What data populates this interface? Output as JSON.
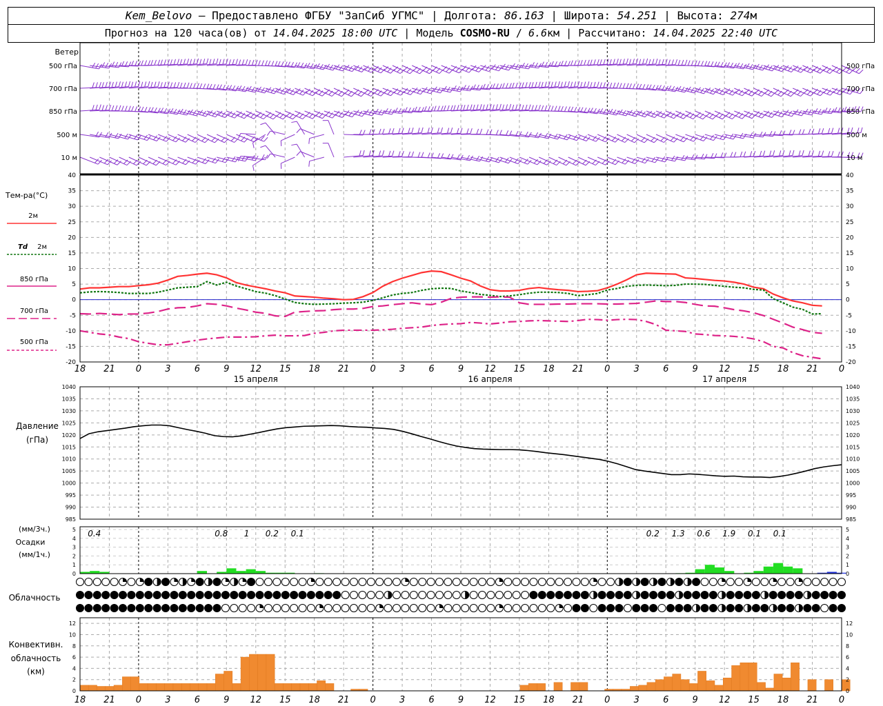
{
  "header": {
    "station": "Kem_Belovo",
    "dash": " – ",
    "provider": "Предоставлено ФГБУ \"ЗапСиб УГМС\"",
    "sep": " | ",
    "lon_label": "Долгота: ",
    "lon": "86.163",
    "lat_label": "Широта: ",
    "lat": "54.251",
    "alt_label": "Высота: ",
    "alt": "274",
    "alt_unit": "м",
    "forecast_label": "Прогноз на 120 часа(ов) от ",
    "start": "14.04.2025 18:00 UTC",
    "model_label": "Модель ",
    "model": "COSMO-RU",
    "model_sep": " / ",
    "res": "6.6",
    "res_unit": "км",
    "calc_label": "Рассчитано: ",
    "calc": "14.04.2025 22:40 UTC"
  },
  "labels": {
    "wind": "Ветер",
    "wind_levels": [
      "500 гПа",
      "700 гПа",
      "850 гПа",
      "500 м",
      "10  м"
    ],
    "temp": "Тем-ра(°C)",
    "t2m": "2м",
    "td": "Td",
    "td2m": "2м",
    "l850": "850 гПа",
    "l700": "700 гПа",
    "l500": "500 гПа",
    "pressure": "Давление",
    "pressure_unit": "(гПа)",
    "precip_unit3": "(мм/3ч.)",
    "precip": "Осадки",
    "precip_unit1": "(мм/1ч.)",
    "cloud": "Облачность",
    "conv1": "Конвективн.",
    "conv2": "облачность",
    "conv3": "(км)"
  },
  "colors": {
    "t2m": "#ff3333",
    "td2m": "#117711",
    "levels": "#dd2288",
    "wind": "#8833cc",
    "pressure": "#000000",
    "precip_green": "#22dd22",
    "precip_blue": "#2233dd",
    "conv": "#f08a30",
    "zero_line": "#2222cc"
  },
  "chart_data": [
    {
      "type": "line",
      "panel": "temperature",
      "x_hours": [
        0,
        1,
        2,
        3,
        4,
        5,
        6,
        7,
        8,
        9,
        10,
        11,
        12,
        13,
        14,
        15,
        16,
        17,
        18,
        19,
        20,
        21,
        22,
        23,
        24,
        25,
        26,
        27,
        28,
        29,
        30,
        31,
        32,
        33,
        34,
        35,
        36,
        37,
        38,
        39,
        40,
        41,
        42,
        43,
        44,
        45,
        46,
        47,
        48,
        49,
        50,
        51,
        52,
        53,
        54,
        55,
        56,
        57,
        58,
        59,
        60,
        61,
        62,
        63,
        64,
        65,
        66,
        67,
        68,
        69,
        70,
        71,
        72,
        73,
        74,
        75,
        76,
        77,
        78
      ],
      "x_tick_labels": [
        "18",
        "21",
        "0",
        "3",
        "6",
        "9",
        "12",
        "15",
        "18",
        "21",
        "0",
        "3",
        "6",
        "9",
        "12",
        "15",
        "18",
        "21",
        "0",
        "3",
        "6",
        "9",
        "12",
        "15",
        "18",
        "21",
        "0"
      ],
      "day_labels": [
        "15 апреля",
        "16 апреля",
        "17 апреля"
      ],
      "ylim": [
        -20,
        40
      ],
      "y_ticks": [
        -20,
        -15,
        -10,
        -5,
        0,
        5,
        10,
        15,
        20,
        25,
        30,
        35,
        40
      ],
      "series": [
        {
          "key": "t2m",
          "values": [
            3.4,
            3.8,
            3.8,
            4.0,
            4.2,
            4.2,
            4.5,
            4.8,
            5.3,
            6.3,
            7.5,
            7.8,
            8.2,
            8.5,
            8.0,
            7.0,
            5.5,
            4.7,
            4.1,
            3.5,
            2.8,
            2.2,
            1.2,
            1.0,
            0.8,
            0.5,
            0.3,
            0.0,
            0.1,
            1.0,
            2.3,
            4.3,
            5.8,
            6.9,
            7.8,
            8.7,
            9.2,
            9.0,
            8.0,
            6.9,
            6.0,
            4.4,
            3.2,
            2.8,
            2.8,
            3.0,
            3.6,
            3.9,
            3.5,
            3.2,
            3.0,
            2.6,
            2.7,
            2.9,
            3.8,
            5.0,
            6.4,
            8.0,
            8.5,
            8.4,
            8.3,
            8.2,
            7.0,
            6.8,
            6.5,
            6.2,
            6.0,
            5.6,
            5.0,
            4.0,
            3.5,
            1.8,
            0.6,
            -0.4,
            -1.0,
            -1.8,
            -2.0
          ]
        },
        {
          "key": "td2m",
          "values": [
            2.2,
            2.5,
            2.6,
            2.5,
            2.3,
            2.0,
            2.0,
            2.0,
            2.4,
            3.1,
            3.8,
            4.0,
            4.2,
            5.8,
            4.7,
            5.6,
            4.4,
            3.5,
            2.6,
            2.1,
            1.3,
            0.2,
            -0.9,
            -1.3,
            -1.5,
            -1.4,
            -1.3,
            -1.1,
            -1.0,
            -0.8,
            -0.2,
            0.6,
            1.5,
            2.0,
            2.3,
            3.0,
            3.5,
            3.7,
            3.6,
            2.8,
            2.3,
            1.7,
            1.4,
            1.0,
            1.2,
            1.6,
            2.1,
            2.4,
            2.4,
            2.3,
            2.0,
            1.3,
            1.6,
            2.0,
            3.1,
            3.6,
            4.3,
            4.6,
            4.7,
            4.6,
            4.5,
            4.6,
            5.0,
            5.0,
            4.9,
            4.6,
            4.3,
            4.0,
            3.8,
            3.3,
            3.1,
            0.3,
            -1.0,
            -2.4,
            -3.1,
            -4.6,
            -4.5
          ]
        },
        {
          "key": "l850",
          "values": [
            -4.5,
            -4.6,
            -4.4,
            -4.6,
            -4.8,
            -4.6,
            -4.6,
            -4.3,
            -3.8,
            -3.0,
            -2.6,
            -2.5,
            -2.0,
            -1.3,
            -1.5,
            -2.0,
            -2.7,
            -3.3,
            -4.0,
            -4.4,
            -5.2,
            -5.4,
            -4.0,
            -3.8,
            -3.6,
            -3.5,
            -3.2,
            -3.0,
            -3.0,
            -2.8,
            -2.2,
            -2.0,
            -1.6,
            -1.3,
            -1.0,
            -1.4,
            -1.6,
            -0.8,
            0.4,
            0.8,
            0.9,
            0.9,
            0.8,
            0.9,
            0.8,
            -1.0,
            -1.5,
            -1.5,
            -1.5,
            -1.4,
            -1.4,
            -1.3,
            -1.3,
            -1.3,
            -1.4,
            -1.4,
            -1.3,
            -1.2,
            -0.8,
            -0.4,
            -0.6,
            -0.6,
            -0.9,
            -1.5,
            -2.0,
            -2.1,
            -2.6,
            -3.2,
            -3.6,
            -4.2,
            -5.1,
            -6.3,
            -7.5,
            -8.8,
            -9.6,
            -10.5,
            -10.8
          ]
        },
        {
          "key": "l700",
          "values": [
            -10.0,
            -10.5,
            -11.0,
            -11.3,
            -12.0,
            -12.5,
            -13.5,
            -14.0,
            -14.5,
            -14.5,
            -14.0,
            -13.5,
            -13.0,
            -12.6,
            -12.3,
            -12.0,
            -12.0,
            -12.0,
            -11.9,
            -11.6,
            -11.4,
            -11.6,
            -11.6,
            -11.5,
            -10.8,
            -10.5,
            -10.0,
            -9.8,
            -9.8,
            -9.8,
            -9.8,
            -9.7,
            -9.5,
            -9.2,
            -9.0,
            -8.8,
            -8.3,
            -8.0,
            -7.8,
            -7.7,
            -7.3,
            -7.5,
            -7.8,
            -7.5,
            -7.1,
            -7.0,
            -6.8,
            -6.7,
            -6.8,
            -6.9,
            -7.0,
            -6.7,
            -6.3,
            -6.4,
            -6.6,
            -6.4,
            -6.3,
            -6.4,
            -7.0,
            -8.0,
            -9.8,
            -10.0,
            -10.2,
            -11.0,
            -11.2,
            -11.5,
            -11.6,
            -11.8,
            -12.1,
            -12.6,
            -13.5,
            -15.0,
            -15.5,
            -17.0,
            -18.0,
            -18.5,
            -19.0
          ]
        }
      ]
    },
    {
      "type": "line",
      "panel": "pressure",
      "ylim": [
        985,
        1040
      ],
      "y_ticks": [
        985,
        990,
        995,
        1000,
        1005,
        1010,
        1015,
        1020,
        1025,
        1030,
        1035,
        1040
      ],
      "values": [
        1018.5,
        1020.5,
        1021.3,
        1021.8,
        1022.3,
        1022.8,
        1023.4,
        1023.8,
        1024.1,
        1024.1,
        1023.8,
        1023.0,
        1022.2,
        1021.5,
        1020.7,
        1019.7,
        1019.3,
        1019.2,
        1019.6,
        1020.3,
        1021.0,
        1021.8,
        1022.5,
        1023.0,
        1023.3,
        1023.6,
        1023.7,
        1023.8,
        1023.9,
        1023.8,
        1023.5,
        1023.3,
        1023.2,
        1022.9,
        1022.7,
        1022.3,
        1021.5,
        1020.5,
        1019.4,
        1018.4,
        1017.3,
        1016.3,
        1015.4,
        1014.8,
        1014.3,
        1014.1,
        1014.0,
        1013.9,
        1013.9,
        1013.8,
        1013.5,
        1013.1,
        1012.6,
        1012.2,
        1011.8,
        1011.3,
        1010.8,
        1010.3,
        1009.8,
        1009.0,
        1008.0,
        1006.8,
        1005.6,
        1005.0,
        1004.5,
        1004.0,
        1003.5,
        1003.5,
        1003.8,
        1003.6,
        1003.3,
        1003.0,
        1002.8,
        1002.9,
        1002.6,
        1002.5,
        1002.5,
        1002.3,
        1002.7,
        1003.3,
        1004.1,
        1005.0,
        1006.0,
        1006.7,
        1007.2,
        1007.6
      ]
    },
    {
      "type": "bar",
      "panel": "precipitation",
      "ylim": [
        0,
        5
      ],
      "y_ticks": [
        0,
        1,
        2,
        3,
        4,
        5
      ],
      "totals_3h": [
        "0.4",
        "0.8",
        "1",
        "0.2",
        "0.1",
        "0.2",
        "1.3",
        "0.6",
        "1.9",
        "0.1",
        "0.1"
      ],
      "hourly_green": [
        [
          0,
          0.2
        ],
        [
          1,
          0.3
        ],
        [
          2,
          0.2
        ],
        [
          12,
          0.3
        ],
        [
          14,
          0.2
        ],
        [
          15,
          0.6
        ],
        [
          16,
          0.3
        ],
        [
          17,
          0.5
        ],
        [
          18,
          0.3
        ],
        [
          19,
          0.1
        ],
        [
          20,
          0.1
        ],
        [
          21,
          0.1
        ],
        [
          24,
          0.05
        ],
        [
          61,
          0.05
        ],
        [
          62,
          0.1
        ],
        [
          63,
          0.5
        ],
        [
          64,
          1.0
        ],
        [
          65,
          0.7
        ],
        [
          66,
          0.3
        ],
        [
          68,
          0.1
        ],
        [
          69,
          0.3
        ],
        [
          70,
          0.8
        ],
        [
          71,
          1.2
        ],
        [
          72,
          0.8
        ],
        [
          73,
          0.6
        ]
      ],
      "hourly_blue": [
        [
          76,
          0.1
        ],
        [
          77,
          0.2
        ],
        [
          78,
          0.1
        ]
      ]
    },
    {
      "type": "bar",
      "panel": "convective",
      "ylim": [
        0,
        13
      ],
      "y_ticks": [
        0,
        2,
        4,
        6,
        8,
        10,
        12
      ],
      "bars": [
        [
          0,
          1.0
        ],
        [
          1,
          1.0
        ],
        [
          2,
          0.8
        ],
        [
          3,
          0.8
        ],
        [
          4,
          1.0
        ],
        [
          5,
          2.5
        ],
        [
          6,
          2.5
        ],
        [
          7,
          1.3
        ],
        [
          8,
          1.3
        ],
        [
          9,
          1.3
        ],
        [
          10,
          1.3
        ],
        [
          11,
          1.3
        ],
        [
          12,
          1.3
        ],
        [
          13,
          1.3
        ],
        [
          14,
          1.3
        ],
        [
          15,
          1.3
        ],
        [
          16,
          3.0
        ],
        [
          17,
          3.5
        ],
        [
          18,
          1.3
        ],
        [
          19,
          6.0
        ],
        [
          20,
          6.5
        ],
        [
          21,
          6.5
        ],
        [
          22,
          6.5
        ],
        [
          23,
          1.3
        ],
        [
          24,
          1.3
        ],
        [
          25,
          1.3
        ],
        [
          26,
          1.3
        ],
        [
          27,
          1.3
        ],
        [
          28,
          1.8
        ],
        [
          29,
          1.3
        ],
        [
          32,
          0.3
        ],
        [
          33,
          0.3
        ],
        [
          52,
          1.0
        ],
        [
          53,
          1.3
        ],
        [
          54,
          1.3
        ],
        [
          56,
          1.5
        ],
        [
          58,
          1.5
        ],
        [
          59,
          1.5
        ],
        [
          62,
          0.3
        ],
        [
          63,
          0.3
        ],
        [
          64,
          0.3
        ],
        [
          65,
          0.8
        ],
        [
          66,
          1.0
        ],
        [
          67,
          1.5
        ],
        [
          68,
          2.0
        ],
        [
          69,
          2.5
        ],
        [
          70,
          3.0
        ],
        [
          71,
          2.0
        ],
        [
          72,
          1.3
        ],
        [
          73,
          3.5
        ],
        [
          74,
          1.8
        ],
        [
          75,
          1.0
        ],
        [
          76,
          2.3
        ],
        [
          77,
          4.5
        ],
        [
          78,
          5.0
        ],
        [
          79,
          5.0
        ],
        [
          80,
          1.5
        ],
        [
          81,
          0.5
        ],
        [
          82,
          3.0
        ],
        [
          83,
          2.3
        ],
        [
          84,
          5.0
        ],
        [
          86,
          2.0
        ],
        [
          88,
          2.0
        ],
        [
          90,
          2.0
        ]
      ]
    },
    {
      "type": "table",
      "panel": "cloudiness",
      "rows": 3,
      "cols": 78
    }
  ]
}
